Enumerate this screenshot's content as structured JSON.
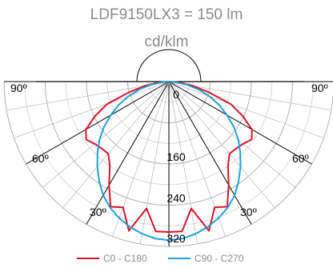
{
  "chart_data": {
    "type": "polar",
    "title": "LDF9150LX3 = 150 lm",
    "unit": "cd/klm",
    "radial_max": 320,
    "radial_step": 80,
    "radial_tick_labels": [
      "0",
      "160",
      "240",
      "320"
    ],
    "angle_labels": [
      "90º",
      "60º",
      "30º",
      "30º",
      "60º",
      "90º"
    ],
    "series": [
      {
        "name": "C0 - C180",
        "color": "#d8142a",
        "angles": [
          0,
          5,
          10,
          15,
          20,
          25,
          30,
          35,
          40,
          45,
          50,
          55,
          60,
          65,
          70,
          75,
          80,
          85,
          90
        ],
        "values": [
          292,
          292,
          250,
          300,
          260,
          268,
          232,
          200,
          183,
          184,
          188,
          196,
          186,
          158,
          128,
          80,
          48,
          22,
          0
        ]
      },
      {
        "name": "C90 - C270",
        "color": "#1fa0d8",
        "angles": [
          0,
          5,
          10,
          15,
          20,
          25,
          30,
          35,
          40,
          45,
          50,
          55,
          60,
          65,
          70,
          75,
          80,
          85,
          90
        ],
        "values": [
          308,
          306,
          300,
          292,
          282,
          270,
          255,
          236,
          216,
          196,
          176,
          154,
          130,
          108,
          84,
          60,
          36,
          14,
          0
        ]
      }
    ]
  }
}
